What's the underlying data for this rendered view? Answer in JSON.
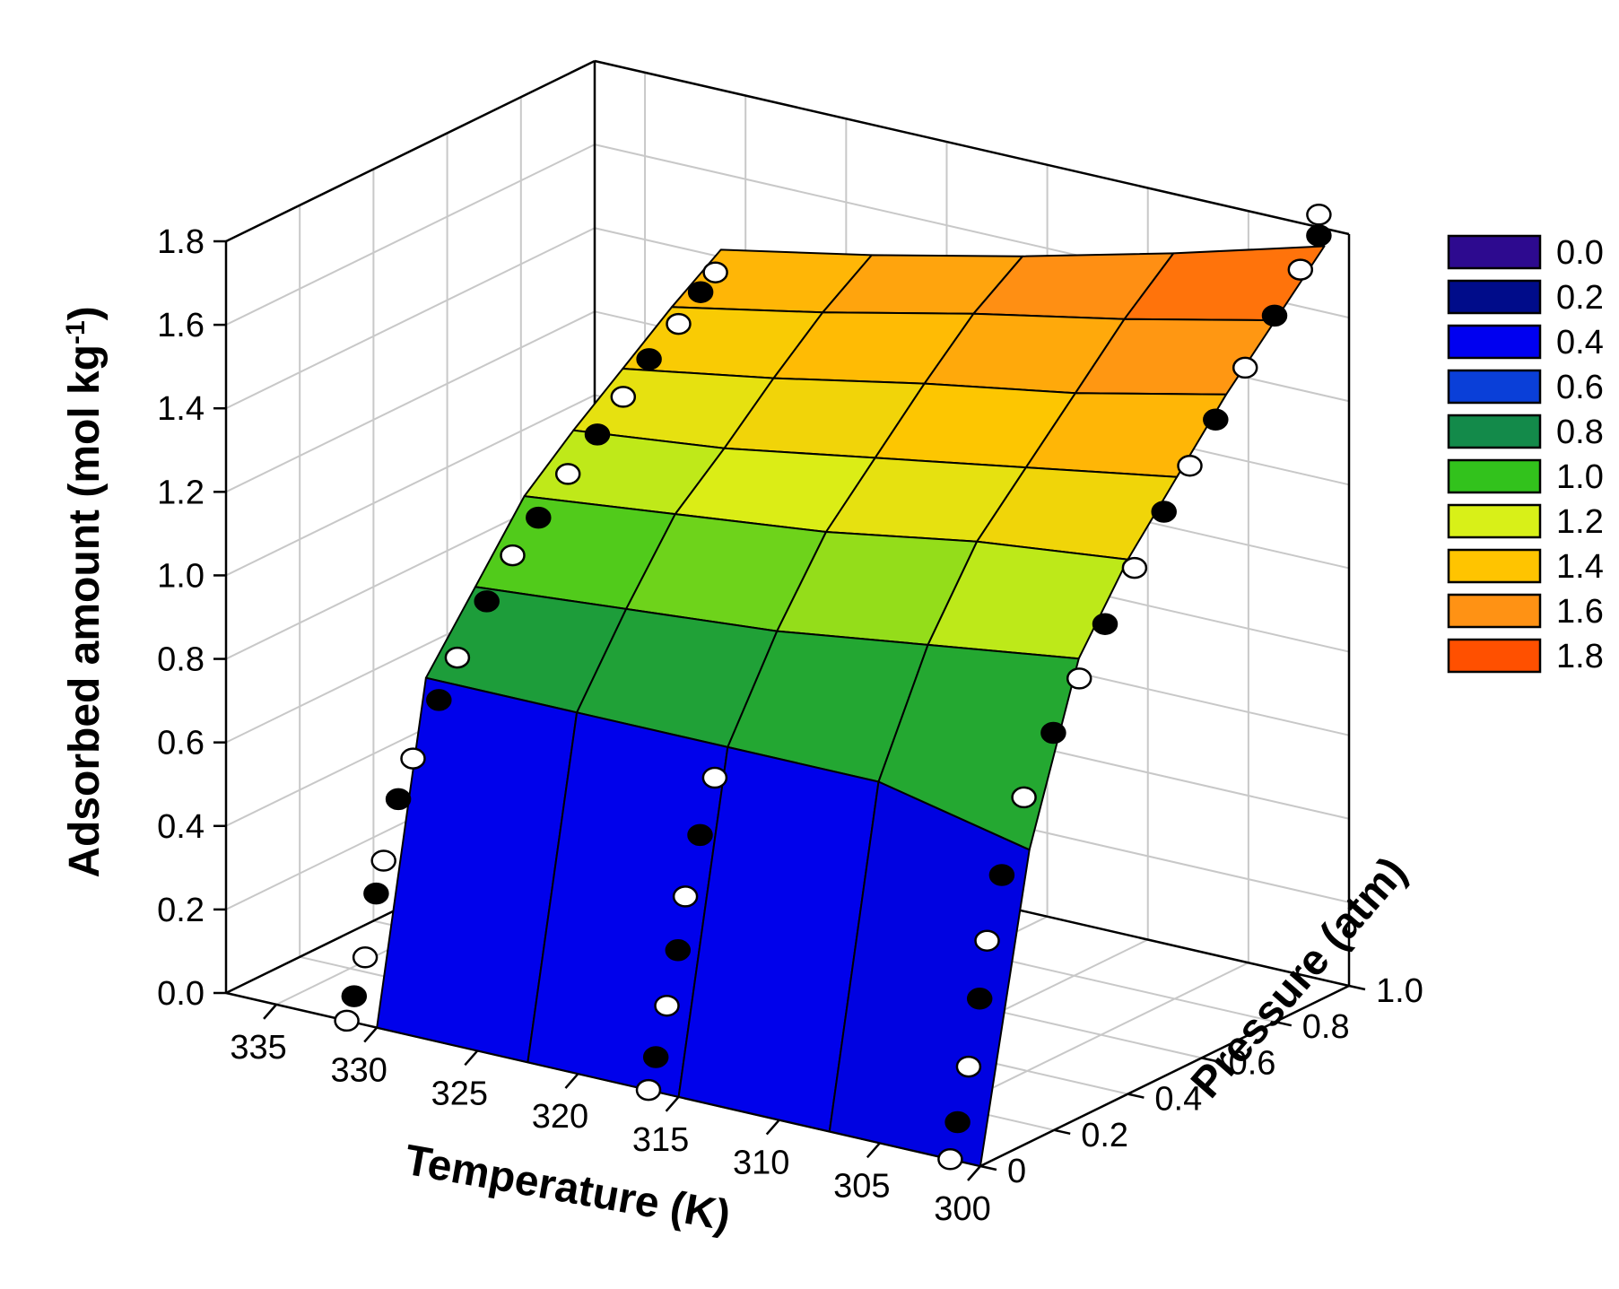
{
  "chart_data": {
    "type": "surface3d",
    "z_axis": {
      "label": "Adsorbed amount (mol kg",
      "label_exponent": "-1",
      "label_suffix": ")",
      "range": [
        0,
        1.8
      ],
      "ticks": [
        "0.0",
        "0.2",
        "0.4",
        "0.6",
        "0.8",
        "1.0",
        "1.2",
        "1.4",
        "1.6",
        "1.8"
      ]
    },
    "x_axis": {
      "label": "Temperature (K)",
      "range": [
        300,
        337.5
      ],
      "ticks": [
        "335",
        "330",
        "325",
        "320",
        "315",
        "310",
        "305",
        "300"
      ],
      "tick_values": [
        335,
        330,
        325,
        320,
        315,
        310,
        305,
        300
      ]
    },
    "y_axis": {
      "label": "Pressure (atm)",
      "range": [
        0,
        1.0
      ],
      "ticks": [
        "0",
        "0.2",
        "0.4",
        "0.6",
        "0.8",
        "1.0"
      ],
      "tick_values": [
        0,
        0.2,
        0.4,
        0.6,
        0.8,
        1.0
      ]
    },
    "surface": {
      "temperatures": [
        330,
        322.5,
        315,
        307.5,
        300
      ],
      "pressures": [
        0.0,
        0.133,
        0.267,
        0.4,
        0.533,
        0.667,
        0.8,
        0.933
      ],
      "z": [
        [
          0.0,
          0.0,
          0.0,
          0.0,
          0.0
        ],
        [
          0.78,
          0.78,
          0.78,
          0.78,
          0.7
        ],
        [
          0.94,
          0.97,
          1.0,
          1.05,
          1.1
        ],
        [
          1.1,
          1.14,
          1.18,
          1.24,
          1.28
        ],
        [
          1.2,
          1.24,
          1.3,
          1.36,
          1.42
        ],
        [
          1.29,
          1.35,
          1.42,
          1.48,
          1.56
        ],
        [
          1.38,
          1.45,
          1.53,
          1.6,
          1.68
        ],
        [
          1.46,
          1.53,
          1.61,
          1.7,
          1.8
        ]
      ]
    },
    "series": [
      {
        "marker": "open-circle",
        "points": [
          [
            331.5,
            0.0,
            0.0
          ],
          [
            331.5,
            0.05,
            0.13
          ],
          [
            331.5,
            0.1,
            0.34
          ],
          [
            331.5,
            0.18,
            0.55
          ],
          [
            331.5,
            0.3,
            0.74
          ],
          [
            331.5,
            0.45,
            0.92
          ],
          [
            331.5,
            0.6,
            1.05
          ],
          [
            331.5,
            0.75,
            1.17
          ],
          [
            331.5,
            0.9,
            1.28
          ],
          [
            331.5,
            1.0,
            1.36
          ],
          [
            316.5,
            0.0,
            0.0
          ],
          [
            316.5,
            0.05,
            0.18
          ],
          [
            316.5,
            0.1,
            0.42
          ],
          [
            316.5,
            0.18,
            0.67
          ],
          [
            301.5,
            0.0,
            0.0
          ],
          [
            301.5,
            0.05,
            0.2
          ],
          [
            301.5,
            0.1,
            0.48
          ],
          [
            301.5,
            0.2,
            0.78
          ],
          [
            301.5,
            0.35,
            1.0
          ],
          [
            301.5,
            0.5,
            1.2
          ],
          [
            301.5,
            0.65,
            1.38
          ],
          [
            301.5,
            0.8,
            1.55
          ],
          [
            301.5,
            0.95,
            1.72
          ],
          [
            301.5,
            1.0,
            1.83
          ]
        ]
      },
      {
        "marker": "filled-circle",
        "points": [
          [
            331.5,
            0.02,
            0.05
          ],
          [
            331.5,
            0.08,
            0.27
          ],
          [
            331.5,
            0.14,
            0.47
          ],
          [
            331.5,
            0.25,
            0.66
          ],
          [
            331.5,
            0.38,
            0.84
          ],
          [
            331.5,
            0.52,
            0.98
          ],
          [
            331.5,
            0.68,
            1.11
          ],
          [
            331.5,
            0.82,
            1.23
          ],
          [
            331.5,
            0.96,
            1.33
          ],
          [
            316.5,
            0.02,
            0.07
          ],
          [
            316.5,
            0.08,
            0.3
          ],
          [
            316.5,
            0.14,
            0.55
          ],
          [
            301.5,
            0.02,
            0.08
          ],
          [
            301.5,
            0.08,
            0.35
          ],
          [
            301.5,
            0.14,
            0.62
          ],
          [
            301.5,
            0.28,
            0.9
          ],
          [
            301.5,
            0.42,
            1.1
          ],
          [
            301.5,
            0.58,
            1.3
          ],
          [
            301.5,
            0.72,
            1.46
          ],
          [
            301.5,
            0.88,
            1.64
          ],
          [
            301.5,
            1.0,
            1.78
          ]
        ]
      }
    ],
    "colorbar": {
      "colors": [
        "#2d0a8f",
        "#000c8a",
        "#0000f0",
        "#0a3fd8",
        "#138a4a",
        "#32c21c",
        "#d8f018",
        "#ffc400",
        "#ff9214",
        "#ff5000"
      ],
      "labels": [
        "0.0",
        "0.2",
        "0.4",
        "0.6",
        "0.8",
        "1.0",
        "1.2",
        "1.4",
        "1.6",
        "1.8"
      ]
    },
    "grid": true,
    "legend_placement": "right"
  }
}
